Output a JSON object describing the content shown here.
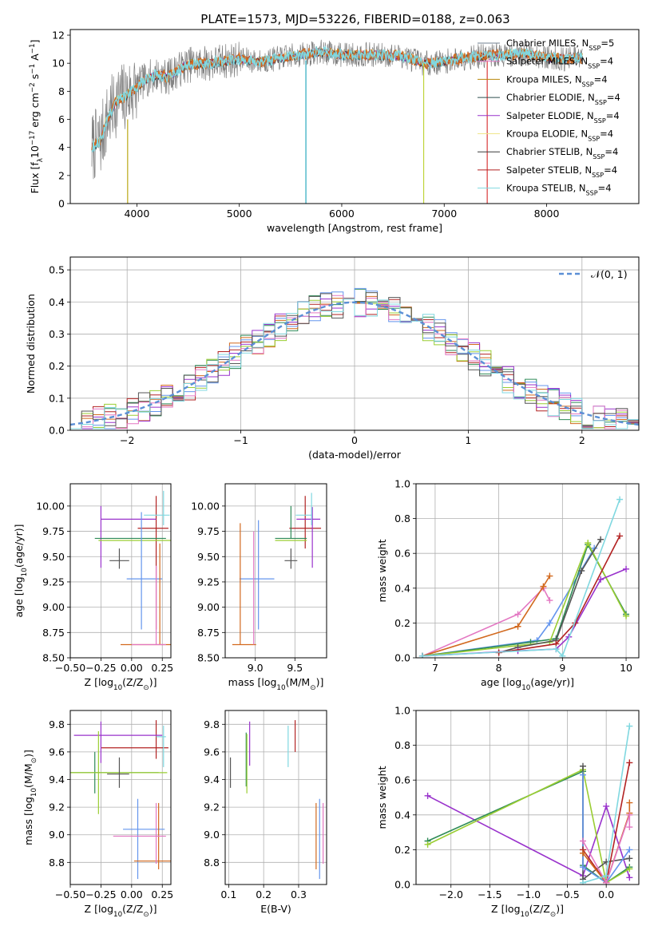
{
  "figure": {
    "title": "PLATE=1573, MJD=53226, FIBERID=0188, z=0.063"
  },
  "chart_data": [
    {
      "id": "spectrum",
      "type": "line",
      "title": "PLATE=1573, MJD=53226, FIBERID=0188, z=0.063",
      "xlabel": "wavelength [Angstrom, rest frame]",
      "ylabel": "Flux [f_λ10^-17 erg cm^-2 s^-1 A^-1]",
      "xlim": [
        3350,
        8900
      ],
      "ylim": [
        0,
        12.4
      ],
      "xticks": [
        4000,
        5000,
        6000,
        7000,
        8000
      ],
      "yticks": [
        0,
        2,
        4,
        6,
        8,
        10,
        12
      ],
      "legend_position": "upper-right",
      "data_color": "#7f7f7f",
      "continuum": {
        "x": [
          3560,
          3650,
          3700,
          3800,
          3900,
          4000,
          4100,
          4200,
          4300,
          4400,
          4500,
          4700,
          5000,
          5200,
          5500,
          5800,
          6000,
          6300,
          6600,
          6800,
          7000,
          7200,
          7400,
          7600,
          7800,
          8000,
          8200,
          8350
        ],
        "y": [
          4.0,
          4.5,
          5.8,
          7.3,
          7.7,
          8.3,
          8.9,
          9.2,
          9.0,
          9.5,
          9.9,
          10.0,
          10.3,
          10.1,
          10.5,
          10.8,
          10.6,
          10.6,
          10.5,
          10.0,
          10.1,
          10.4,
          10.5,
          10.6,
          10.7,
          10.4,
          10.3,
          10.4
        ]
      },
      "vertical_spikes": [
        {
          "x": 3910,
          "top": 6.0,
          "color": "#b5a000"
        },
        {
          "x": 5650,
          "top": 10.2,
          "color": "#17a2b8"
        },
        {
          "x": 6800,
          "top": 10.0,
          "color": "#bcd22f"
        },
        {
          "x": 7420,
          "top": 10.2,
          "color": "#d62728"
        }
      ],
      "series": [
        {
          "name": "Chabrier MILES, N_SSP=5",
          "color": "#708090"
        },
        {
          "name": "Salpeter MILES, N_SSP=4",
          "color": "#e377c2"
        },
        {
          "name": "Kroupa MILES, N_SSP=4",
          "color": "#b8860b"
        },
        {
          "name": "Chabrier ELODIE, N_SSP=4",
          "color": "#2f4f4f"
        },
        {
          "name": "Salpeter ELODIE, N_SSP=4",
          "color": "#9932cc"
        },
        {
          "name": "Kroupa ELODIE, N_SSP=4",
          "color": "#f0e68c"
        },
        {
          "name": "Chabrier STELIB, N_SSP=4",
          "color": "#3a3a3a"
        },
        {
          "name": "Salpeter STELIB, N_SSP=4",
          "color": "#b22222"
        },
        {
          "name": "Kroupa STELIB, N_SSP=4",
          "color": "#80d8e0"
        }
      ]
    },
    {
      "id": "residuals",
      "type": "line",
      "xlabel": "(data-model)/error",
      "ylabel": "Normed distribution",
      "xlim": [
        -2.5,
        2.5
      ],
      "ylim": [
        0,
        0.54
      ],
      "xticks": [
        -2,
        -1,
        0,
        1,
        2
      ],
      "yticks": [
        0.0,
        0.1,
        0.2,
        0.3,
        0.4,
        0.5
      ],
      "grid": true,
      "legend_position": "top-right",
      "reference": {
        "name": "𝒩(0, 1)",
        "color": "#5b8fd6",
        "dash": "6,4"
      },
      "hist_bins": 50,
      "hist_colors": [
        "#2e8b57",
        "#d2691e",
        "#6495ed",
        "#b22222",
        "#9932cc",
        "#9acd32",
        "#e377c2",
        "#555555",
        "#80d8e0"
      ]
    },
    {
      "id": "age-vs-Z",
      "type": "scatter",
      "xlabel": "Z [log10(Z/Z☉)]",
      "ylabel": "age  [log10(age/yr)]",
      "xlim": [
        -0.5,
        0.32
      ],
      "ylim": [
        8.5,
        10.22
      ],
      "xticks": [
        -0.5,
        -0.25,
        0.0,
        0.25
      ],
      "yticks": [
        8.5,
        8.75,
        9.0,
        9.25,
        9.5,
        9.75,
        10.0
      ],
      "grid": true,
      "points": [
        {
          "x": 0.2,
          "y": 9.78,
          "xerr": [
            0.15,
            0.1
          ],
          "yerr": [
            1.0,
            0.32
          ],
          "color": "#b22222"
        },
        {
          "x": -0.25,
          "y": 9.87,
          "xerr": [
            0.0,
            0.45
          ],
          "yerr": [
            0.48,
            0.13
          ],
          "color": "#9932cc"
        },
        {
          "x": 0.26,
          "y": 9.91,
          "xerr": [
            0.16,
            0.05
          ],
          "yerr": [
            0.1,
            0.24
          ],
          "color": "#80d8e0"
        },
        {
          "x": -0.3,
          "y": 9.68,
          "xerr": [
            0.0,
            0.58
          ],
          "yerr": [
            0.0,
            0.0
          ],
          "color": "#2e8b57"
        },
        {
          "x": -0.27,
          "y": 9.66,
          "xerr": [
            0.0,
            0.6
          ],
          "yerr": [
            0.0,
            0.0
          ],
          "color": "#9acd32"
        },
        {
          "x": -0.1,
          "y": 9.46,
          "xerr": [
            0.08,
            0.08
          ],
          "yerr": [
            0.08,
            0.12
          ],
          "color": "#555555"
        },
        {
          "x": 0.08,
          "y": 9.28,
          "xerr": [
            0.12,
            0.17
          ],
          "yerr": [
            0.5,
            0.66
          ],
          "color": "#6495ed"
        },
        {
          "x": 0.23,
          "y": 8.63,
          "xerr": [
            0.32,
            0.13
          ],
          "yerr": [
            0.0,
            1.0
          ],
          "color": "#d2691e"
        },
        {
          "x": 0.2,
          "y": 8.63,
          "xerr": [
            0.2,
            0.08
          ],
          "yerr": [
            0.0,
            0.78
          ],
          "color": "#e377c2"
        }
      ]
    },
    {
      "id": "age-vs-mass",
      "type": "scatter",
      "xlabel": "mass [log10(M/M☉)]",
      "ylabel": "",
      "xlim": [
        8.62,
        9.9
      ],
      "ylim": [
        8.5,
        10.22
      ],
      "xticks": [
        9.0,
        9.5
      ],
      "yticks": [
        8.5,
        8.75,
        9.0,
        9.25,
        9.5,
        9.75,
        10.0
      ],
      "grid": true,
      "points": [
        {
          "x": 9.63,
          "y": 9.78,
          "xerr": [
            0.2,
            0.2
          ],
          "yerr": [
            0.2,
            0.32
          ],
          "color": "#b22222"
        },
        {
          "x": 9.72,
          "y": 9.87,
          "xerr": [
            0.2,
            0.1
          ],
          "yerr": [
            0.48,
            0.12
          ],
          "color": "#9932cc"
        },
        {
          "x": 9.71,
          "y": 9.91,
          "xerr": [
            0.2,
            0.0
          ],
          "yerr": [
            0.1,
            0.22
          ],
          "color": "#80d8e0"
        },
        {
          "x": 9.45,
          "y": 9.68,
          "xerr": [
            0.2,
            0.2
          ],
          "yerr": [
            0.0,
            0.32
          ],
          "color": "#2e8b57"
        },
        {
          "x": 9.45,
          "y": 9.66,
          "xerr": [
            0.2,
            0.2
          ],
          "yerr": [
            0.0,
            0.0
          ],
          "color": "#9acd32"
        },
        {
          "x": 9.45,
          "y": 9.46,
          "xerr": [
            0.08,
            0.08
          ],
          "yerr": [
            0.08,
            0.12
          ],
          "color": "#555555"
        },
        {
          "x": 9.04,
          "y": 9.28,
          "xerr": [
            0.24,
            0.2
          ],
          "yerr": [
            0.5,
            0.58
          ],
          "color": "#6495ed"
        },
        {
          "x": 8.81,
          "y": 8.63,
          "xerr": [
            0.1,
            0.2
          ],
          "yerr": [
            0.0,
            1.2
          ],
          "color": "#d2691e"
        },
        {
          "x": 8.98,
          "y": 8.63,
          "xerr": [
            0.0,
            0.0
          ],
          "yerr": [
            0.0,
            1.12
          ],
          "color": "#e377c2"
        }
      ]
    },
    {
      "id": "massweight-vs-age",
      "type": "line",
      "xlabel": "age  [log10(age/yr)]",
      "ylabel": "mass weight",
      "xlim": [
        6.7,
        10.2
      ],
      "ylim": [
        0,
        1.0
      ],
      "xticks": [
        7,
        8,
        9,
        10
      ],
      "yticks": [
        0.0,
        0.2,
        0.4,
        0.6,
        0.8,
        1.0
      ],
      "grid": true,
      "series": [
        {
          "color": "#e377c2",
          "x": [
            6.8,
            8.3,
            8.7,
            8.8
          ],
          "y": [
            0.01,
            0.25,
            0.4,
            0.33
          ]
        },
        {
          "color": "#d2691e",
          "x": [
            6.8,
            8.3,
            8.7,
            8.8
          ],
          "y": [
            0.01,
            0.18,
            0.41,
            0.47
          ]
        },
        {
          "color": "#6495ed",
          "x": [
            6.8,
            8.6,
            8.8,
            9.5
          ],
          "y": [
            0.01,
            0.1,
            0.2,
            0.63
          ]
        },
        {
          "color": "#2e8b57",
          "x": [
            6.8,
            8.5,
            8.9,
            9.4,
            10.0
          ],
          "y": [
            0.01,
            0.09,
            0.11,
            0.65,
            0.25
          ]
        },
        {
          "color": "#9acd32",
          "x": [
            6.8,
            8.8,
            9.4,
            10.0
          ],
          "y": [
            0.01,
            0.09,
            0.66,
            0.24
          ]
        },
        {
          "color": "#555555",
          "x": [
            8.0,
            8.3,
            8.9,
            9.3,
            9.6
          ],
          "y": [
            0.03,
            0.06,
            0.1,
            0.5,
            0.68
          ]
        },
        {
          "color": "#9932cc",
          "x": [
            6.8,
            8.3,
            8.9,
            9.1,
            9.6,
            10.0
          ],
          "y": [
            0.01,
            0.04,
            0.05,
            0.12,
            0.45,
            0.51
          ]
        },
        {
          "color": "#b22222",
          "x": [
            8.0,
            8.9,
            9.2,
            9.9
          ],
          "y": [
            0.03,
            0.08,
            0.2,
            0.7
          ]
        },
        {
          "color": "#80d8e0",
          "x": [
            6.8,
            8.9,
            9.0,
            9.9
          ],
          "y": [
            0.01,
            0.05,
            0.01,
            0.91
          ]
        }
      ]
    },
    {
      "id": "mass-vs-Z",
      "type": "scatter",
      "xlabel": "Z [log10(Z/Z☉)]",
      "ylabel": "mass [log10(M/M☉)]",
      "xlim": [
        -0.5,
        0.32
      ],
      "ylim": [
        8.64,
        9.9
      ],
      "xticks": [
        -0.5,
        -0.25,
        0.0,
        0.25
      ],
      "yticks": [
        8.8,
        9.0,
        9.2,
        9.4,
        9.6,
        9.8
      ],
      "grid": true,
      "points": [
        {
          "x": 0.2,
          "y": 9.63,
          "xerr": [
            0.45,
            0.1
          ],
          "yerr": [
            0.08,
            0.2
          ],
          "color": "#b22222"
        },
        {
          "x": -0.25,
          "y": 9.72,
          "xerr": [
            0.22,
            0.5
          ],
          "yerr": [
            0.2,
            0.1
          ],
          "color": "#9932cc"
        },
        {
          "x": 0.26,
          "y": 9.71,
          "xerr": [
            0.06,
            0.02
          ],
          "yerr": [
            0.22,
            0.08
          ],
          "color": "#80d8e0"
        },
        {
          "x": -0.3,
          "y": 9.45,
          "xerr": [
            0.2,
            0.52
          ],
          "yerr": [
            0.15,
            0.15
          ],
          "color": "#2e8b57"
        },
        {
          "x": -0.27,
          "y": 9.45,
          "xerr": [
            0.23,
            0.56
          ],
          "yerr": [
            0.3,
            0.3
          ],
          "color": "#9acd32"
        },
        {
          "x": -0.1,
          "y": 9.44,
          "xerr": [
            0.1,
            0.08
          ],
          "yerr": [
            0.1,
            0.12
          ],
          "color": "#555555"
        },
        {
          "x": 0.05,
          "y": 9.04,
          "xerr": [
            0.12,
            0.22
          ],
          "yerr": [
            0.36,
            0.22
          ],
          "color": "#6495ed"
        },
        {
          "x": 0.22,
          "y": 8.81,
          "xerr": [
            0.2,
            0.1
          ],
          "yerr": [
            0.06,
            0.42
          ],
          "color": "#d2691e"
        },
        {
          "x": 0.2,
          "y": 8.99,
          "xerr": [
            0.35,
            0.08
          ],
          "yerr": [
            0.2,
            0.24
          ],
          "color": "#e377c2"
        }
      ]
    },
    {
      "id": "mass-vs-EBV",
      "type": "scatter",
      "xlabel": "E(B-V)",
      "ylabel": "",
      "xlim": [
        0.09,
        0.38
      ],
      "ylim": [
        8.64,
        9.9
      ],
      "xticks": [
        0.1,
        0.2,
        0.3
      ],
      "yticks": [
        8.8,
        9.0,
        9.2,
        9.4,
        9.6,
        9.8
      ],
      "grid": true,
      "points": [
        {
          "x": 0.29,
          "y": 9.63,
          "xerr": [
            0,
            0
          ],
          "yerr": [
            0.03,
            0.2
          ],
          "color": "#b22222"
        },
        {
          "x": 0.16,
          "y": 9.72,
          "xerr": [
            0,
            0
          ],
          "yerr": [
            0.22,
            0.1
          ],
          "color": "#9932cc"
        },
        {
          "x": 0.27,
          "y": 9.71,
          "xerr": [
            0,
            0
          ],
          "yerr": [
            0.22,
            0.08
          ],
          "color": "#80d8e0"
        },
        {
          "x": 0.15,
          "y": 9.5,
          "xerr": [
            0,
            0
          ],
          "yerr": [
            0.15,
            0.24
          ],
          "color": "#2e8b57"
        },
        {
          "x": 0.152,
          "y": 9.45,
          "xerr": [
            0,
            0
          ],
          "yerr": [
            0.15,
            0.28
          ],
          "color": "#9acd32"
        },
        {
          "x": 0.105,
          "y": 9.44,
          "xerr": [
            0,
            0
          ],
          "yerr": [
            0.1,
            0.12
          ],
          "color": "#555555"
        },
        {
          "x": 0.36,
          "y": 9.04,
          "xerr": [
            0,
            0
          ],
          "yerr": [
            0.36,
            0.22
          ],
          "color": "#6495ed"
        },
        {
          "x": 0.35,
          "y": 8.81,
          "xerr": [
            0,
            0
          ],
          "yerr": [
            0.06,
            0.42
          ],
          "color": "#d2691e"
        },
        {
          "x": 0.37,
          "y": 8.99,
          "xerr": [
            0,
            0
          ],
          "yerr": [
            0.2,
            0.24
          ],
          "color": "#e377c2"
        }
      ]
    },
    {
      "id": "massweight-vs-Z",
      "type": "line",
      "xlabel": "Z [log10(Z/Z☉)]",
      "ylabel": "mass weight",
      "xlim": [
        -2.45,
        0.42
      ],
      "ylim": [
        0,
        1.0
      ],
      "xticks": [
        -2.0,
        -1.5,
        -1.0,
        -0.5,
        0.0
      ],
      "yticks": [
        0.0,
        0.2,
        0.4,
        0.6,
        0.8,
        1.0
      ],
      "grid": true,
      "series": [
        {
          "color": "#9932cc",
          "x": [
            -2.3,
            -0.3,
            0.0,
            0.3
          ],
          "y": [
            0.51,
            0.05,
            0.45,
            0.04
          ]
        },
        {
          "color": "#2e8b57",
          "x": [
            -2.3,
            -0.3,
            -0.3,
            0.0,
            0.3
          ],
          "y": [
            0.25,
            0.65,
            0.11,
            0.01,
            0.1
          ]
        },
        {
          "color": "#9acd32",
          "x": [
            -2.3,
            -0.3,
            0.0,
            0.3
          ],
          "y": [
            0.23,
            0.66,
            0.01,
            0.09
          ]
        },
        {
          "color": "#555555",
          "x": [
            -0.3,
            -0.3,
            0.0,
            0.3
          ],
          "y": [
            0.68,
            0.03,
            0.13,
            0.15
          ]
        },
        {
          "color": "#6495ed",
          "x": [
            -0.3,
            -0.3,
            0.0,
            0.3
          ],
          "y": [
            0.63,
            0.1,
            0.01,
            0.2
          ]
        },
        {
          "color": "#b22222",
          "x": [
            -0.3,
            0.0,
            0.3
          ],
          "y": [
            0.2,
            0.01,
            0.7
          ]
        },
        {
          "color": "#d2691e",
          "x": [
            -0.3,
            0.0,
            0.3,
            0.3
          ],
          "y": [
            0.18,
            0.01,
            0.41,
            0.47
          ]
        },
        {
          "color": "#e377c2",
          "x": [
            -0.3,
            0.0,
            0.3,
            0.3
          ],
          "y": [
            0.25,
            0.01,
            0.4,
            0.33
          ]
        },
        {
          "color": "#80d8e0",
          "x": [
            -0.3,
            0.0,
            0.3
          ],
          "y": [
            0.01,
            0.05,
            0.91
          ]
        }
      ]
    }
  ]
}
